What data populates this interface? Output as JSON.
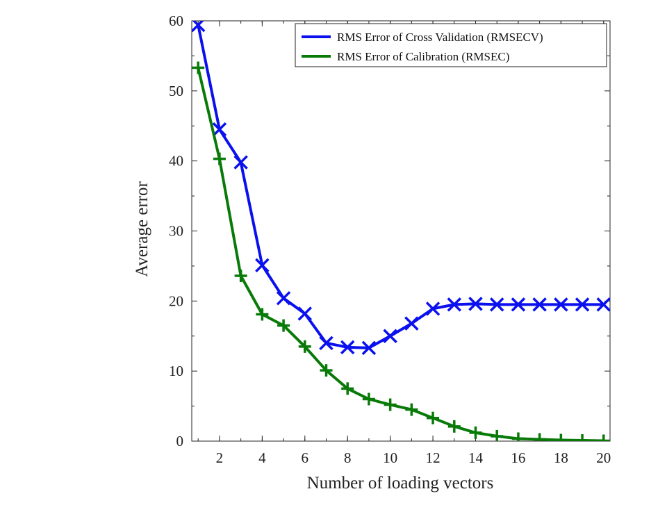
{
  "chart_data": {
    "type": "line",
    "title": "",
    "xlabel": "Number of loading vectors",
    "ylabel": "Average error",
    "xlim": [
      0.7,
      20.3
    ],
    "ylim": [
      0,
      60
    ],
    "xticks": [
      2,
      4,
      6,
      8,
      10,
      12,
      14,
      16,
      18,
      20
    ],
    "yticks": [
      0,
      10,
      20,
      30,
      40,
      50,
      60
    ],
    "grid": false,
    "legend_position": "top-right",
    "x": [
      1,
      2,
      3,
      4,
      5,
      6,
      7,
      8,
      9,
      10,
      11,
      12,
      13,
      14,
      15,
      16,
      17,
      18,
      19,
      20
    ],
    "series": [
      {
        "name": "RMS Error of Cross Validation (RMSECV)",
        "color": "#0a10ee",
        "marker": "x",
        "values": [
          59.4,
          44.5,
          39.8,
          25.1,
          20.4,
          18.2,
          14.0,
          13.4,
          13.3,
          15.0,
          16.8,
          18.9,
          19.5,
          19.6,
          19.5,
          19.5,
          19.5,
          19.5,
          19.5,
          19.5
        ]
      },
      {
        "name": "RMS Error of Calibration (RMSEC)",
        "color": "#087a08",
        "marker": "+",
        "values": [
          53.3,
          40.3,
          23.6,
          18.1,
          16.5,
          13.5,
          10.1,
          7.5,
          6.0,
          5.2,
          4.5,
          3.3,
          2.1,
          1.2,
          0.7,
          0.35,
          0.25,
          0.15,
          0.1,
          0.05
        ]
      }
    ]
  }
}
